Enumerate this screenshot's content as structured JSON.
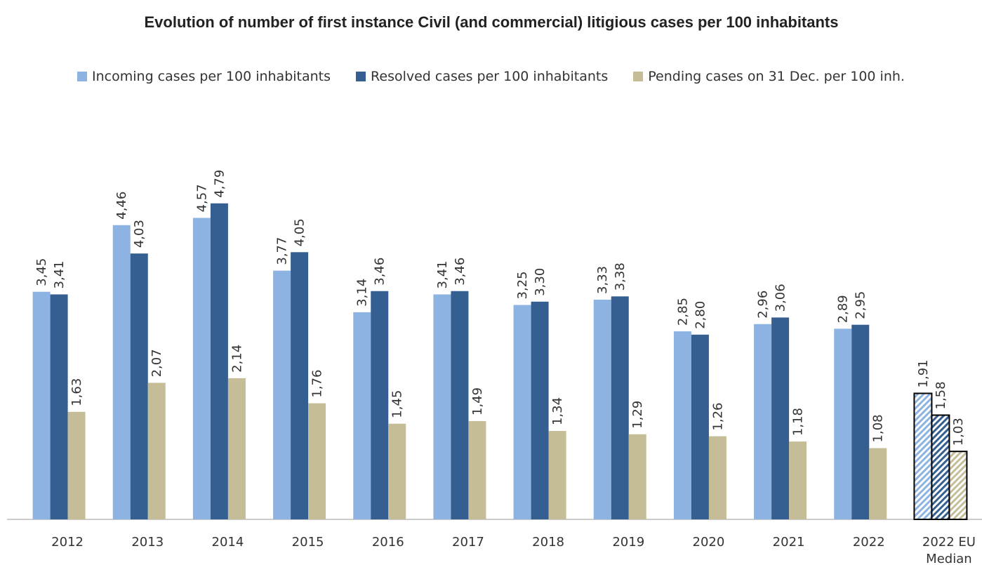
{
  "chart_data": {
    "type": "bar",
    "title": "Evolution of number of first instance Civil (and commercial) litigious cases per 100 inhabitants",
    "categories": [
      "2012",
      "2013",
      "2014",
      "2015",
      "2016",
      "2017",
      "2018",
      "2019",
      "2020",
      "2021",
      "2022",
      "2022 EU Median"
    ],
    "series": [
      {
        "name": "Incoming cases per 100 inhabitants",
        "color": "#8db3e2",
        "values": [
          3.45,
          4.46,
          4.57,
          3.77,
          3.14,
          3.41,
          3.25,
          3.33,
          2.85,
          2.96,
          2.89,
          1.91
        ],
        "value_labels": [
          "3,45",
          "4,46",
          "4,57",
          "3,77",
          "3,14",
          "3,41",
          "3,25",
          "3,33",
          "2,85",
          "2,96",
          "2,89",
          "1,91"
        ]
      },
      {
        "name": "Resolved cases per 100 inhabitants",
        "color": "#355f91",
        "values": [
          3.41,
          4.03,
          4.79,
          4.05,
          3.46,
          3.46,
          3.3,
          3.38,
          2.8,
          3.06,
          2.95,
          1.58
        ],
        "value_labels": [
          "3,41",
          "4,03",
          "4,79",
          "4,05",
          "3,46",
          "3,46",
          "3,30",
          "3,38",
          "2,80",
          "3,06",
          "2,95",
          "1,58"
        ]
      },
      {
        "name": "Pending cases on 31 Dec. per 100 inh.",
        "color": "#c4bd97",
        "values": [
          1.63,
          2.07,
          2.14,
          1.76,
          1.45,
          1.49,
          1.34,
          1.29,
          1.26,
          1.18,
          1.08,
          1.03
        ],
        "value_labels": [
          "1,63",
          "2,07",
          "2,14",
          "1,76",
          "1,45",
          "1,49",
          "1,34",
          "1,29",
          "1,26",
          "1,18",
          "1,08",
          "1,03"
        ]
      }
    ],
    "ylim": [
      0,
      6
    ],
    "hatched_index": 11,
    "legend": "top"
  }
}
